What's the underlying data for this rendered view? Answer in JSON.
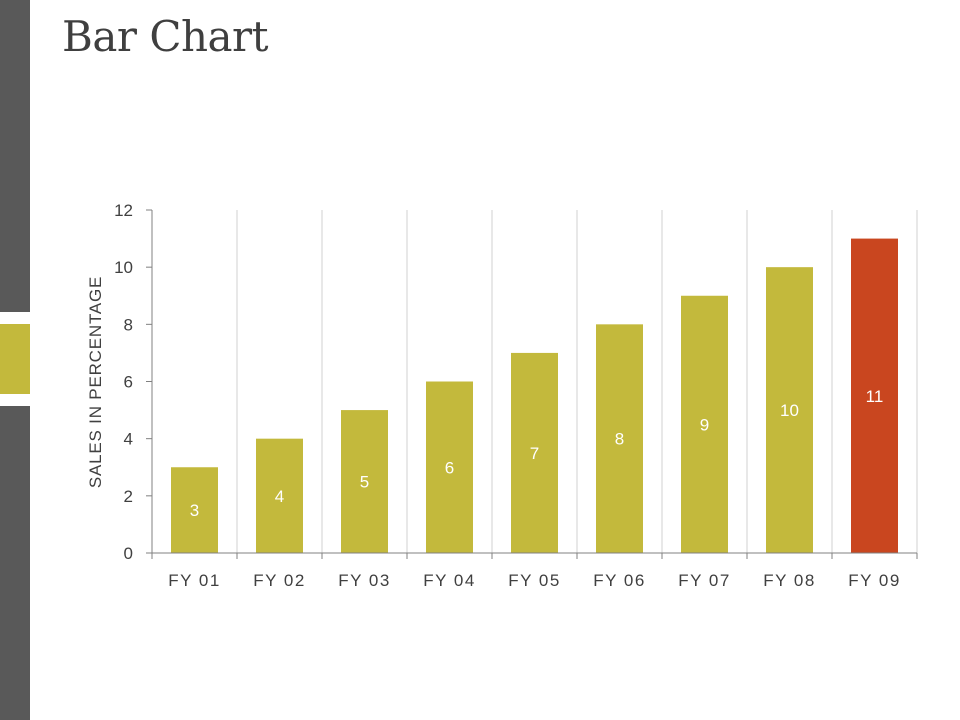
{
  "page": {
    "title": "Bar Chart"
  },
  "colors": {
    "side_strip": "#595959",
    "side_accent": "#c3b93c",
    "bar": "#c3b93c",
    "highlight_bar": "#c9461f",
    "gridline": "#d0d0d0",
    "axis": "#808080"
  },
  "chart_data": {
    "type": "bar",
    "title": "",
    "xlabel": "",
    "ylabel": "SALES IN PERCENTAGE",
    "categories": [
      "FY 01",
      "FY 02",
      "FY 03",
      "FY 04",
      "FY 05",
      "FY 06",
      "FY 07",
      "FY 08",
      "FY 09"
    ],
    "values": [
      3,
      4,
      5,
      6,
      7,
      8,
      9,
      10,
      11
    ],
    "data_labels": [
      "3",
      "4",
      "5",
      "6",
      "7",
      "8",
      "9",
      "10",
      "11"
    ],
    "highlight_index": 8,
    "ylim": [
      0,
      12
    ],
    "yticks": [
      0,
      2,
      4,
      6,
      8,
      10,
      12
    ],
    "ytick_labels": [
      "0",
      "2",
      "4",
      "6",
      "8",
      "10",
      "12"
    ],
    "grid": "vertical",
    "legend": "none"
  }
}
